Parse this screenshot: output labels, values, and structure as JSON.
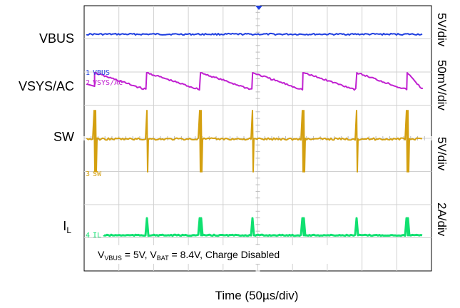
{
  "chart_data": {
    "type": "line",
    "xlabel": "Time (50µs/div)",
    "grid": true,
    "divisions": {
      "x": 10,
      "y": 8
    },
    "annotation": {
      "parts": [
        {
          "text": "V",
          "sub": "VBUS"
        },
        {
          "text": " = 5V, V",
          "sub": "BAT"
        },
        {
          "text": " = 8.4V, Charge Disabled",
          "sub": ""
        }
      ]
    },
    "series": [
      {
        "name": "VBUS",
        "label_main": "VBUS",
        "label_sub": "",
        "scale": "5V/div",
        "tag": "VBUS",
        "number": "1",
        "color": "#1f3fe0",
        "shape": "flat"
      },
      {
        "name": "VSYS/AC",
        "label_main": "VSYS/AC",
        "label_sub": "",
        "scale": "50mV/div",
        "tag": "VSYS/AC",
        "number": "2",
        "color": "#c020d0",
        "shape": "sawtooth"
      },
      {
        "name": "SW",
        "label_main": "SW",
        "label_sub": "",
        "scale": "5V/div",
        "tag": "SW",
        "number": "3",
        "color": "#d4a010",
        "shape": "spikes"
      },
      {
        "name": "IL",
        "label_main": "I",
        "label_sub": "L",
        "scale": "2A/div",
        "tag": "IL",
        "number": "4",
        "color": "#10e070",
        "shape": "pulses"
      }
    ],
    "event_times_div": [
      0.3,
      1.8,
      3.35,
      4.85,
      6.3,
      7.85,
      9.3
    ]
  }
}
